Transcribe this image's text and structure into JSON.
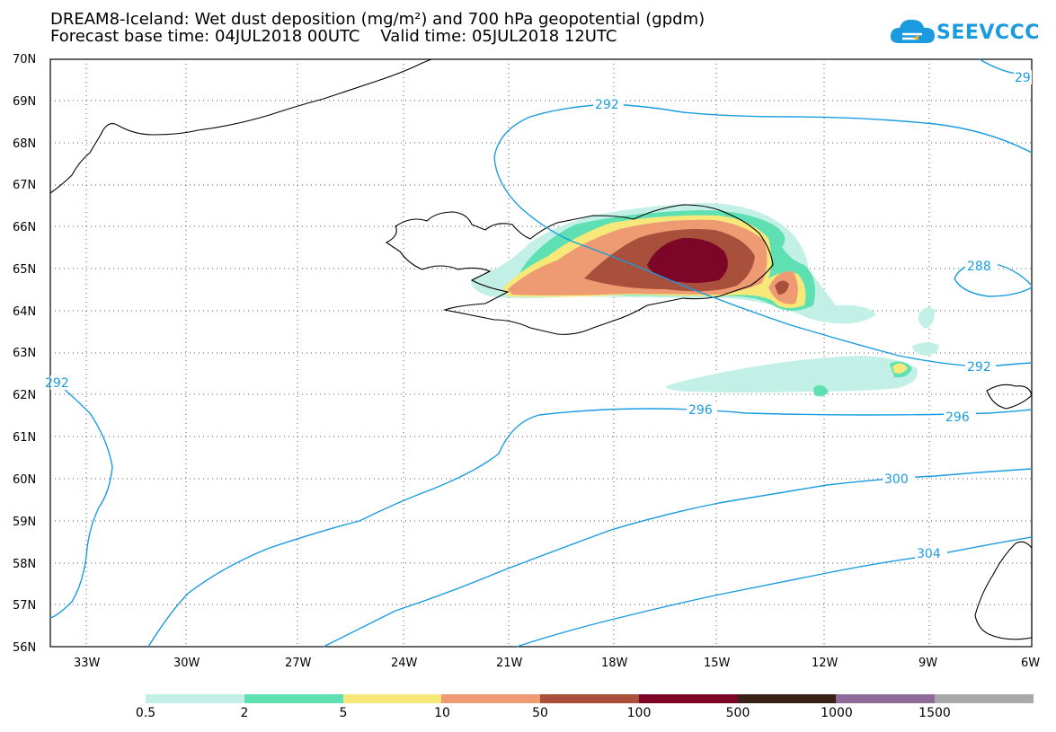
{
  "title": {
    "line1": "DREAM8-Iceland: Wet dust deposition (mg/m²) and 700 hPa geopotential (gpdm)",
    "line2": "Forecast base time: 04JUL2018 00UTC    Valid time: 05JUL2018 12UTC"
  },
  "logo": {
    "text": "SEEVCCC",
    "icon": "cloud-icon"
  },
  "axes": {
    "lat_labels": [
      "70N",
      "69N",
      "68N",
      "67N",
      "66N",
      "65N",
      "64N",
      "63N",
      "62N",
      "61N",
      "60N",
      "59N",
      "58N",
      "57N",
      "56N"
    ],
    "lon_labels": [
      "33W",
      "30W",
      "27W",
      "24W",
      "21W",
      "18W",
      "15W",
      "12W",
      "9W",
      "6W"
    ]
  },
  "contours": {
    "color": "#1a9be0",
    "labels": [
      "292",
      "29",
      "292",
      "288",
      "292",
      "296",
      "296",
      "300",
      "304"
    ]
  },
  "legend": {
    "colors": [
      "#c2f0e6",
      "#5ee0b2",
      "#f7e87a",
      "#ee9a73",
      "#a9503c",
      "#7d0527",
      "#3b2218",
      "#8e6b98",
      "#a9a9a9"
    ],
    "ticks": [
      "0.5",
      "2",
      "5",
      "10",
      "50",
      "100",
      "500",
      "1000",
      "1500"
    ]
  }
}
